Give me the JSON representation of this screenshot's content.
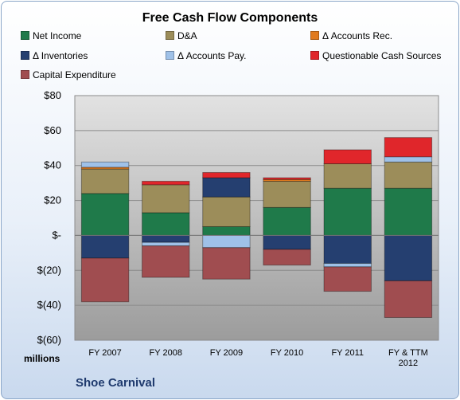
{
  "chart_data": {
    "type": "bar",
    "stacked": true,
    "title": "Free Cash Flow Components",
    "categories": [
      "FY 2007",
      "FY 2008",
      "FY 2009",
      "FY 2010",
      "FY 2011",
      "FY & TTM 2012"
    ],
    "y_unit_label": "millions",
    "ylim": [
      -60,
      80
    ],
    "yticks": [
      80,
      60,
      40,
      20,
      0,
      -20,
      -40,
      -60
    ],
    "ytick_labels": [
      "$80",
      "$60",
      "$40",
      "$20",
      "$-",
      "$(20)",
      "$(40)",
      "$(60)"
    ],
    "grid": true,
    "legend_position": "top",
    "series": [
      {
        "name": "Net Income",
        "color": "#1f7a4a",
        "values": [
          24,
          13,
          5,
          16,
          27,
          27
        ]
      },
      {
        "name": "D&A",
        "color": "#9c8d5a",
        "values": [
          14,
          16,
          17,
          15,
          14,
          15
        ]
      },
      {
        "name": "Δ Accounts Rec.",
        "color": "#e07a1f",
        "values": [
          1,
          0,
          0,
          1,
          0,
          0
        ]
      },
      {
        "name": "Δ Inventories",
        "color": "#253f70",
        "values": [
          -13,
          -4,
          11,
          -8,
          -16,
          -26
        ]
      },
      {
        "name": "Δ Accounts Pay.",
        "color": "#9fc1e8",
        "values": [
          3,
          -2,
          -7,
          0,
          -2,
          3
        ]
      },
      {
        "name": "Questionable Cash Sources",
        "color": "#e0262b",
        "values": [
          0,
          2,
          3,
          1,
          8,
          11
        ]
      },
      {
        "name": "Capital Expenditure",
        "color": "#a04d50",
        "values": [
          -25,
          -18,
          -18,
          -9,
          -14,
          -21
        ]
      }
    ]
  },
  "footer": {
    "company": "Shoe Carnival"
  }
}
